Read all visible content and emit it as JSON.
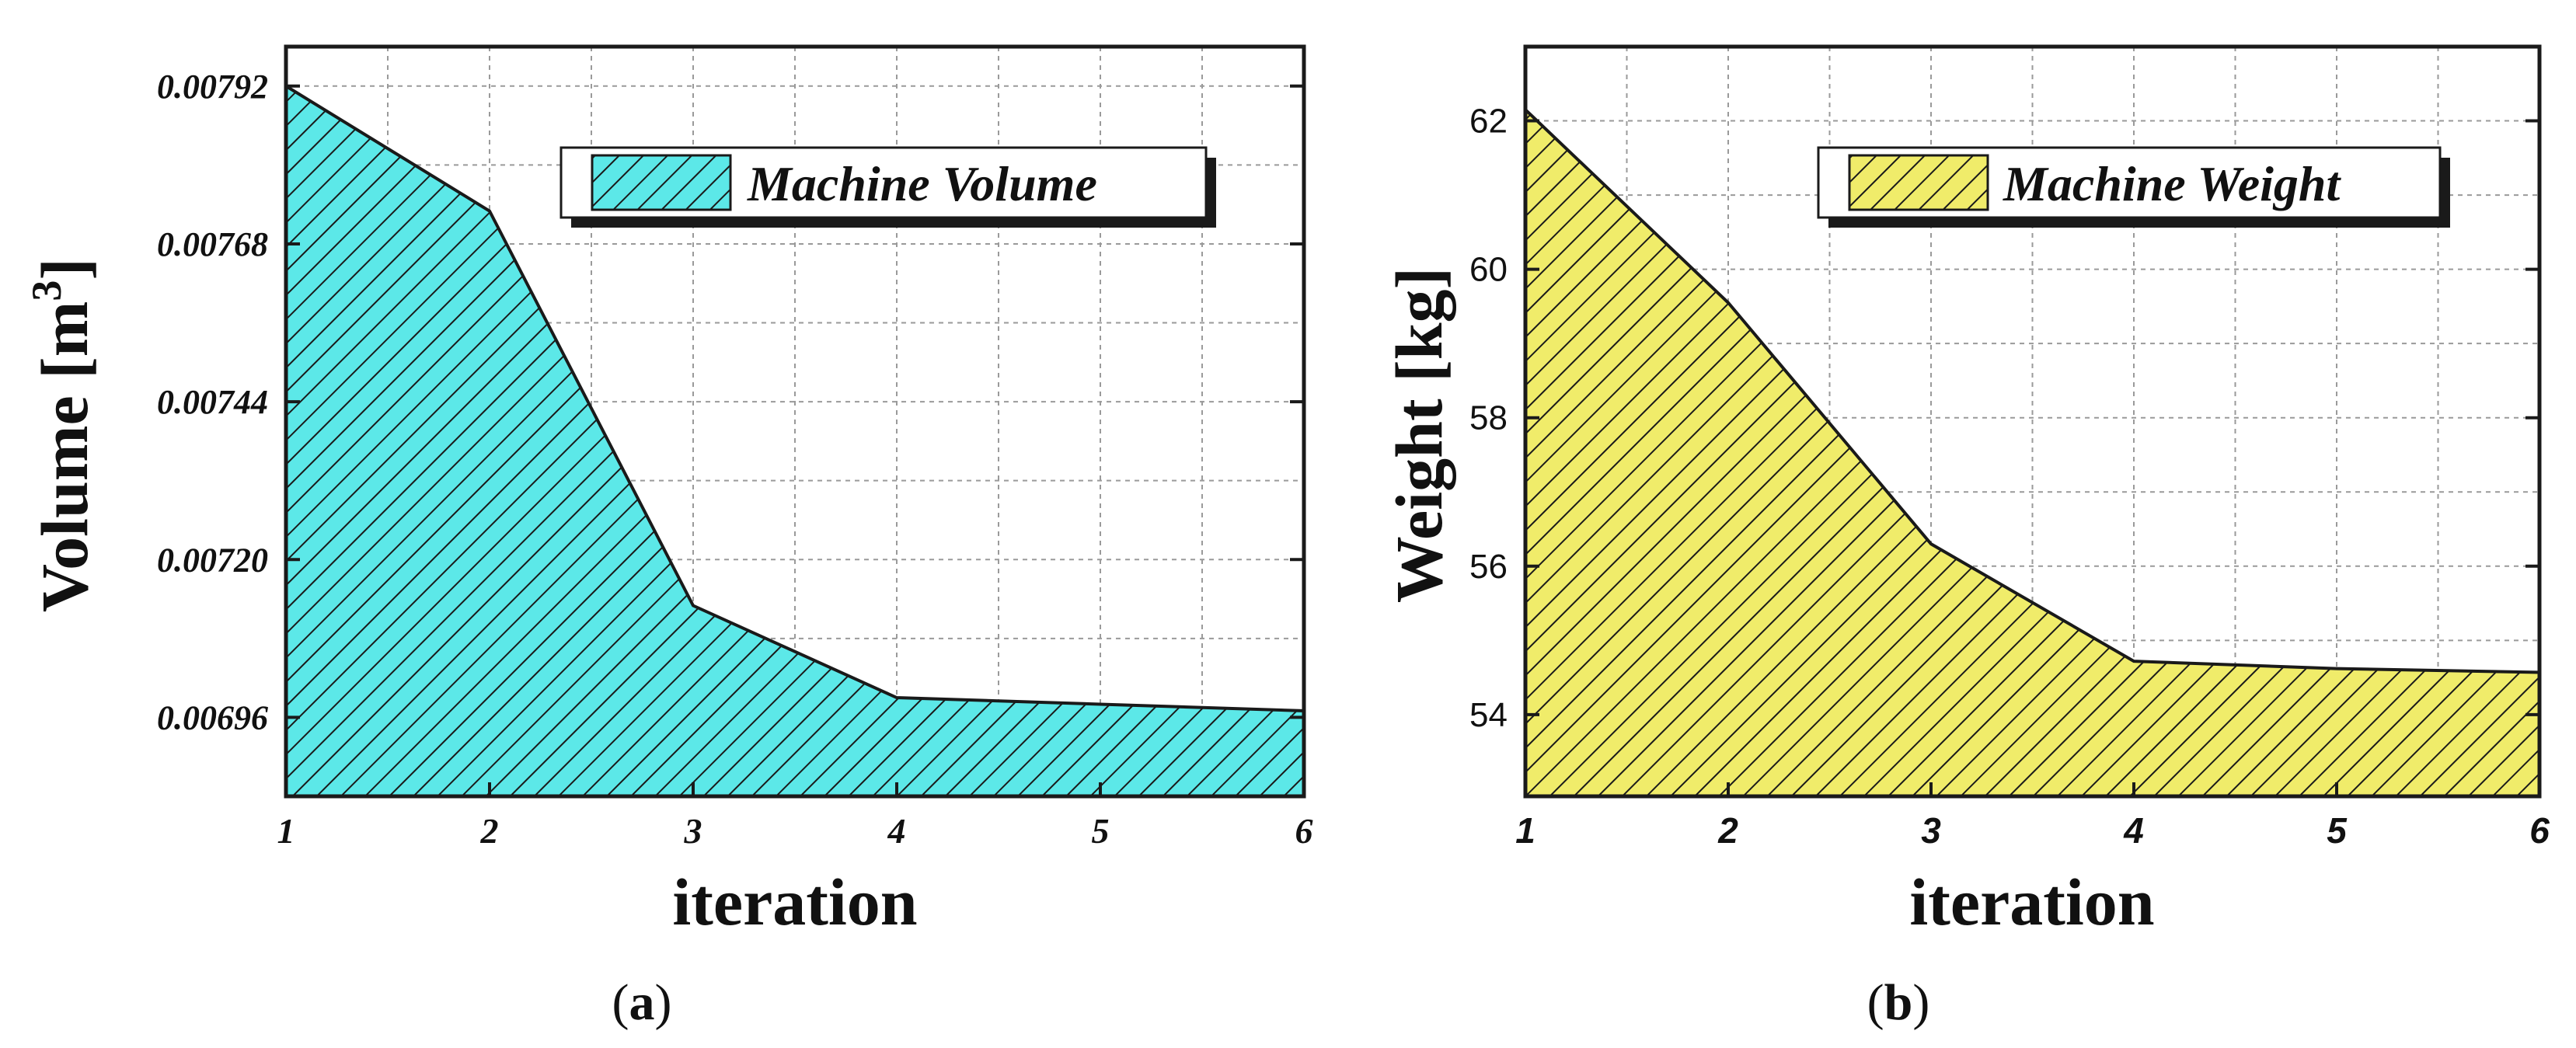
{
  "chart_data": [
    {
      "type": "area",
      "x": [
        1,
        2,
        3,
        4,
        5,
        6
      ],
      "series": [
        {
          "name": "Machine Volume",
          "values": [
            0.00792,
            0.00773,
            0.00713,
            0.00699,
            0.00698,
            0.00697
          ]
        }
      ],
      "xlabel": "iteration",
      "ylabel": "Volume [m",
      "ylabel_superscript": "3",
      "ylabel_suffix": "]",
      "ylim": [
        0.00684,
        0.00798
      ],
      "xlim": [
        1,
        6
      ],
      "xticks": [
        "1",
        "2",
        "3",
        "4",
        "5",
        "6"
      ],
      "yticks": [
        "0.00792",
        "0.00768",
        "0.00744",
        "0.00720",
        "0.00696"
      ],
      "ytick_values": [
        0.00792,
        0.00768,
        0.00744,
        0.0072,
        0.00696
      ],
      "fill_color": "#5ce8e8",
      "pattern": "diagonal-hatch",
      "grid": true,
      "legend_position": "top-right",
      "caption": "(a)",
      "caption_letter": "a"
    },
    {
      "type": "area",
      "x": [
        1,
        2,
        3,
        4,
        5,
        6
      ],
      "series": [
        {
          "name": "Machine Weight",
          "values": [
            62.15,
            59.55,
            56.3,
            54.72,
            54.62,
            54.57
          ]
        }
      ],
      "xlabel": "iteration",
      "ylabel": "Weight [kg]",
      "ylim": [
        52.9,
        63.0
      ],
      "xlim": [
        1,
        6
      ],
      "xticks": [
        "1",
        "2",
        "3",
        "4",
        "5",
        "6"
      ],
      "yticks": [
        "62",
        "60",
        "58",
        "56",
        "54"
      ],
      "ytick_values": [
        62,
        60,
        58,
        56,
        54
      ],
      "fill_color": "#f0ec6a",
      "pattern": "diagonal-hatch",
      "grid": true,
      "legend_position": "top-right",
      "caption": "(b)",
      "caption_letter": "b"
    }
  ]
}
